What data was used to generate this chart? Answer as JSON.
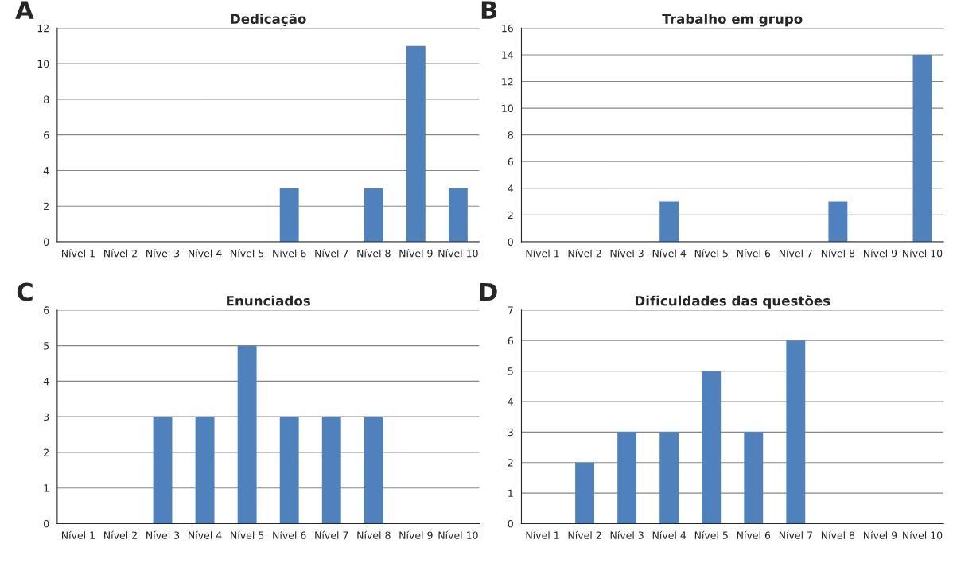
{
  "chart_data": [
    {
      "type": "bar",
      "title": "Dedicação",
      "annotations": [
        "A"
      ],
      "categories": [
        "Nível 1",
        "Nível 2",
        "Nível 3",
        "Nível 4",
        "Nível 5",
        "Nível 6",
        "Nível 7",
        "Nível 8",
        "Nível 9",
        "Nível 10"
      ],
      "values": [
        0,
        0,
        0,
        0,
        0,
        3,
        0,
        3,
        11,
        3
      ],
      "color": "#4f81bd",
      "ylim": [
        0,
        12
      ],
      "yticks": [
        0,
        2,
        4,
        6,
        8,
        10,
        12
      ],
      "grid": "y",
      "legend": false
    },
    {
      "type": "bar",
      "title": "Trabalho em grupo",
      "annotations": [
        "B"
      ],
      "categories": [
        "Nível 1",
        "Nível 2",
        "Nível 3",
        "Nível 4",
        "Nível 5",
        "Nível 6",
        "Nível 7",
        "Nível 8",
        "Nível 9",
        "Nível 10"
      ],
      "values": [
        0,
        0,
        0,
        3,
        0,
        0,
        0,
        3,
        0,
        14
      ],
      "color": "#4f81bd",
      "ylim": [
        0,
        16
      ],
      "yticks": [
        0,
        2,
        4,
        6,
        8,
        10,
        12,
        14,
        16
      ],
      "grid": "y",
      "legend": false
    },
    {
      "type": "bar",
      "title": "Enunciados",
      "annotations": [
        "C"
      ],
      "categories": [
        "Nível 1",
        "Nível 2",
        "Nível 3",
        "Nível 4",
        "Nível 5",
        "Nível 6",
        "Nível 7",
        "Nível 8",
        "Nível 9",
        "Nível 10"
      ],
      "values": [
        0,
        0,
        3,
        3,
        5,
        3,
        3,
        3,
        0,
        0
      ],
      "color": "#4f81bd",
      "ylim": [
        0,
        6
      ],
      "yticks": [
        0,
        1,
        2,
        3,
        4,
        5,
        6
      ],
      "grid": "y",
      "legend": false
    },
    {
      "type": "bar",
      "title": "Dificuldades das questões",
      "annotations": [
        "D"
      ],
      "categories": [
        "Nível 1",
        "Nível 2",
        "Nível 3",
        "Nível 4",
        "Nível 5",
        "Nível 6",
        "Nível 7",
        "Nível 8",
        "Nível 9",
        "Nível 10"
      ],
      "values": [
        0,
        2,
        3,
        3,
        5,
        3,
        6,
        0,
        0,
        0
      ],
      "color": "#4f81bd",
      "ylim": [
        0,
        7
      ],
      "yticks": [
        0,
        1,
        2,
        3,
        4,
        5,
        6,
        7
      ],
      "grid": "y",
      "legend": false
    }
  ]
}
